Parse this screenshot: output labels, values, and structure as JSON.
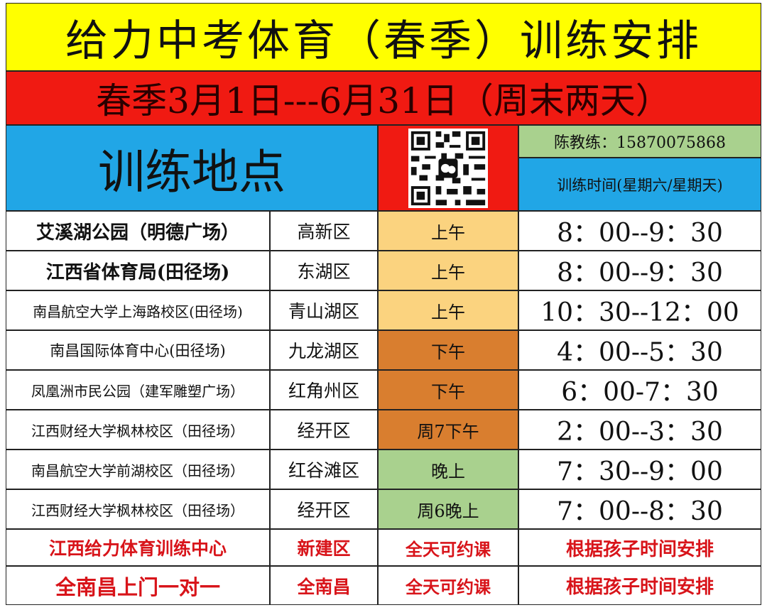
{
  "title": "给力中考体育（春季）训练安排",
  "subtitle": "春季3月1日---6月31日（周末两天）",
  "header": {
    "location": "训练地点",
    "coach": "陈教练：15870075868",
    "time_note": "训练时间(星期六/星期天)"
  },
  "table": {
    "rows": [
      [
        "艾溪湖公园（明德广场）",
        "高新区",
        "上午",
        "8：00--9：30"
      ],
      [
        "江西省体育局(田径场)",
        "东湖区",
        "上午",
        "8：00--9：30"
      ],
      [
        "南昌航空大学上海路校区(田径场)",
        "青山湖区",
        "上午",
        "10：30--12：00"
      ],
      [
        "南昌国际体育中心(田径场)",
        "九龙湖区",
        "下午",
        "4：00--5：30"
      ],
      [
        "凤凰洲市民公园（建军雕塑广场）",
        "红角州区",
        "下午",
        "6：00-7：30"
      ],
      [
        "江西财经大学枫林校区（田径场）",
        "经开区",
        "周7下午",
        "2：00--3：30"
      ],
      [
        "南昌航空大学前湖校区（田径场）",
        "红谷滩区",
        "晚上",
        "7：30--9：00"
      ],
      [
        "江西财经大学枫林校区（田径场）",
        "经开区",
        "周6晚上",
        "7：00--8：30"
      ],
      [
        "江西给力体育训练中心",
        "新建区",
        "全天可约课",
        "根据孩子时间安排"
      ],
      [
        "全南昌上门一对一",
        "全南昌",
        "全天可约课",
        "根据孩子时间安排"
      ]
    ]
  }
}
